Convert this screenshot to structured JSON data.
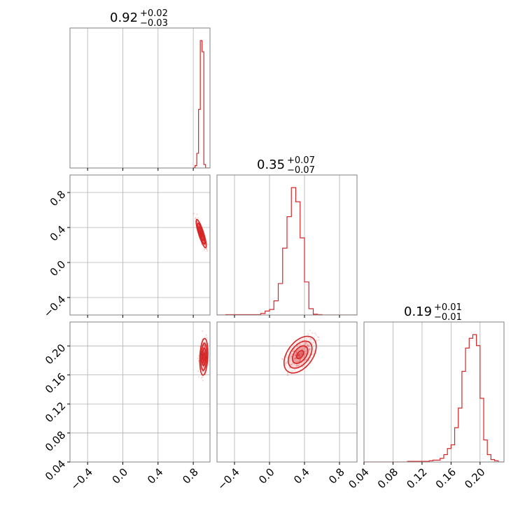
{
  "colors": {
    "series": "#d62728",
    "grid": "#b0b0b0",
    "frame": "#808080"
  },
  "chart_data": {
    "type": "corner",
    "parameters": [
      {
        "title_value": "0.92",
        "title_plus": "+0.02",
        "title_minus": "−0.03"
      },
      {
        "title_value": "0.35",
        "title_plus": "+0.07",
        "title_minus": "−0.07"
      },
      {
        "title_value": "0.19",
        "title_plus": "+0.01",
        "title_minus": "−0.01"
      }
    ],
    "axis_ranges": [
      [
        -0.6,
        0.99
      ],
      [
        -0.6,
        1.0
      ],
      [
        0.04,
        0.233
      ]
    ],
    "ticks": {
      "p0": {
        "values": [
          -0.4,
          0.0,
          0.4,
          0.8
        ],
        "labels": [
          "−0.4",
          "0.0",
          "0.4",
          "0.8"
        ]
      },
      "p1": {
        "values": [
          -0.4,
          0.0,
          0.4,
          0.8
        ],
        "labels": [
          "−0.4",
          "0.0",
          "0.4",
          "0.8"
        ]
      },
      "p2": {
        "values": [
          0.04,
          0.08,
          0.12,
          0.16,
          0.2
        ],
        "labels": [
          "0.04",
          "0.08",
          "0.12",
          "0.16",
          "0.20"
        ]
      }
    },
    "grid": true,
    "histograms": [
      {
        "param": 0,
        "bin_edges": [
          0.8,
          0.82,
          0.84,
          0.86,
          0.88,
          0.9,
          0.92,
          0.94,
          0.96,
          0.98,
          0.99
        ],
        "counts": [
          0.5,
          7,
          42,
          168,
          365,
          333,
          10,
          0,
          0,
          0
        ]
      },
      {
        "param": 1,
        "bin_edges": [
          -0.6,
          -0.5,
          -0.1,
          -0.05,
          0.0,
          0.05,
          0.1,
          0.15,
          0.2,
          0.25,
          0.3,
          0.35,
          0.4,
          0.45,
          0.5,
          0.55,
          0.6,
          1.0
        ],
        "counts": [
          0,
          0.5,
          2,
          5,
          7,
          18,
          40,
          85,
          125,
          162,
          144,
          98,
          42,
          8,
          1,
          0.5,
          0
        ]
      },
      {
        "param": 2,
        "bin_edges": [
          0.04,
          0.1,
          0.13,
          0.135,
          0.14,
          0.145,
          0.15,
          0.155,
          0.16,
          0.165,
          0.17,
          0.175,
          0.18,
          0.185,
          0.19,
          0.195,
          0.2,
          0.205,
          0.21,
          0.215,
          0.22,
          0.225,
          0.233
        ],
        "counts": [
          0,
          0.5,
          1,
          1.5,
          1.5,
          3,
          6,
          11,
          14,
          28,
          44,
          74,
          93,
          101,
          104,
          95,
          52,
          18,
          6,
          2,
          1,
          0
        ]
      }
    ],
    "pairs": [
      {
        "x_param": 0,
        "y_param": 1,
        "center": [
          0.89,
          0.33
        ],
        "sigma": [
          0.025,
          0.07
        ],
        "rho": -0.85
      },
      {
        "x_param": 0,
        "y_param": 2,
        "center": [
          0.92,
          0.185
        ],
        "sigma": [
          0.02,
          0.011
        ],
        "rho": 0.2
      },
      {
        "x_param": 1,
        "y_param": 2,
        "center": [
          0.35,
          0.188
        ],
        "sigma": [
          0.08,
          0.011
        ],
        "rho": 0.45
      }
    ]
  }
}
